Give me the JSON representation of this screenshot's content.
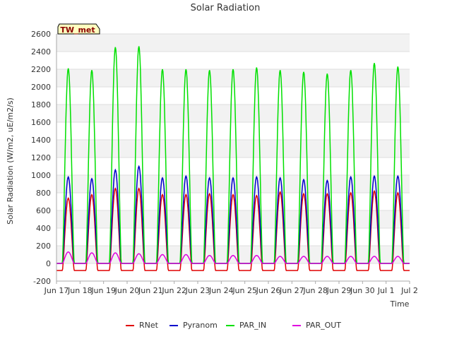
{
  "chart_data": {
    "type": "line",
    "title": "Solar Radiation",
    "xlabel": "Time",
    "ylabel": "Solar Radiation (W/m2, uE/m2/s)",
    "site_label": "TW_met",
    "ylim": [
      -200,
      2600
    ],
    "xlim": [
      "2024-06-17",
      "2024-07-02"
    ],
    "yticks": [
      -200,
      0,
      200,
      400,
      600,
      800,
      1000,
      1200,
      1400,
      1600,
      1800,
      2000,
      2200,
      2400,
      2600
    ],
    "xticks": [
      "Jun 17",
      "Jun 18",
      "Jun 19",
      "Jun 20",
      "Jun 21",
      "Jun 22",
      "Jun 23",
      "Jun 24",
      "Jun 25",
      "Jun 26",
      "Jun 27",
      "Jun 28",
      "Jun 29",
      "Jun 30",
      "Jul 1",
      "Jul 2"
    ],
    "grid": true,
    "legend_position": "bottom",
    "days": [
      "2024-06-17",
      "2024-06-18",
      "2024-06-19",
      "2024-06-20",
      "2024-06-21",
      "2024-06-22",
      "2024-06-23",
      "2024-06-24",
      "2024-06-25",
      "2024-06-26",
      "2024-06-27",
      "2024-06-28",
      "2024-06-29",
      "2024-06-30",
      "2024-07-01"
    ],
    "series": [
      {
        "name": "RNet",
        "color": "#e00000",
        "daily_peak": [
          740,
          780,
          850,
          850,
          780,
          780,
          790,
          780,
          770,
          810,
          790,
          790,
          800,
          820,
          800
        ],
        "night_value": -80
      },
      {
        "name": "Pyranom",
        "color": "#0000cc",
        "daily_peak": [
          980,
          960,
          1060,
          1100,
          970,
          990,
          970,
          970,
          980,
          970,
          950,
          940,
          980,
          990,
          990
        ],
        "night_value": 0
      },
      {
        "name": "PAR_IN",
        "color": "#00e000",
        "daily_peak": [
          2210,
          2190,
          2450,
          2460,
          2200,
          2200,
          2190,
          2200,
          2220,
          2190,
          2170,
          2150,
          2190,
          2270,
          2230
        ],
        "night_value": 0
      },
      {
        "name": "PAR_OUT",
        "color": "#e000e0",
        "daily_peak": [
          130,
          120,
          120,
          110,
          100,
          100,
          90,
          90,
          90,
          80,
          80,
          80,
          80,
          80,
          80
        ],
        "night_value": 0
      }
    ]
  }
}
